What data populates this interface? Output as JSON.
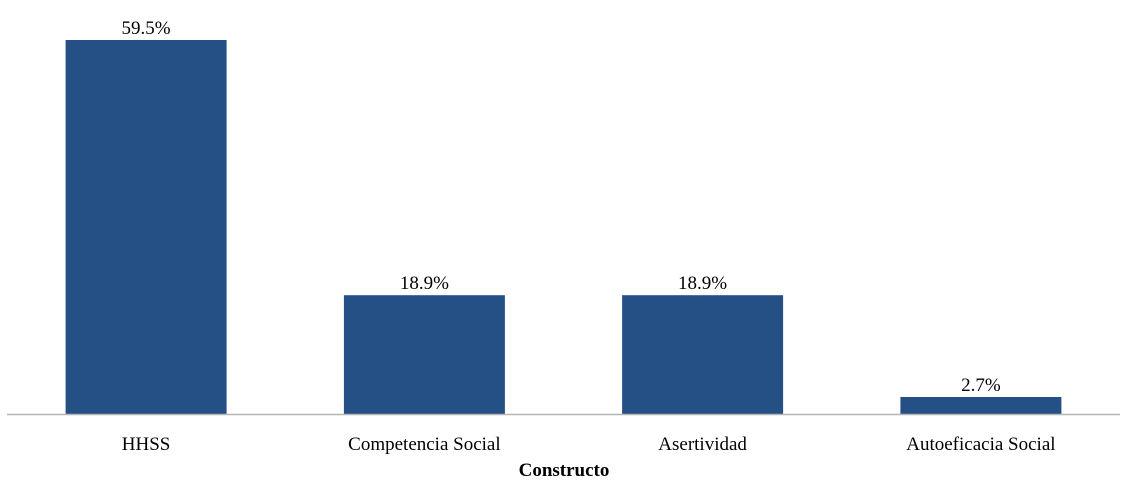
{
  "chart_data": {
    "type": "bar",
    "categories": [
      "HHSS",
      "Competencia Social",
      "Asertividad",
      "Autoeficacia Social"
    ],
    "values": [
      59.5,
      18.9,
      18.9,
      2.7
    ],
    "value_labels": [
      "59.5%",
      "18.9%",
      "18.9%",
      "2.7%"
    ],
    "title": "",
    "xlabel": "Constructo",
    "ylabel": "",
    "ylim": [
      0,
      60
    ],
    "unit": "%",
    "grid": false,
    "legend": "none",
    "bar_color": "#255086",
    "axis_color": "#b5b5b5"
  }
}
